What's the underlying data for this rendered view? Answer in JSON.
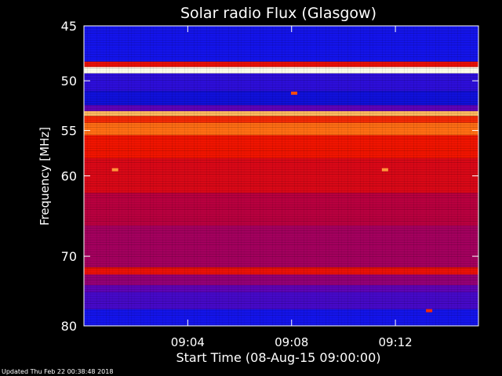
{
  "chart_data": {
    "type": "heatmap",
    "title": "Solar radio Flux (Glasgow)",
    "ylabel": "Frequency [MHz]",
    "xlabel": "Start Time (08-Aug-15 09:00:00)",
    "y_scale": "log",
    "ylim": [
      45,
      80
    ],
    "xlim": [
      "09:00:00",
      "09:15:12"
    ],
    "y_ticks": [
      45,
      50,
      55,
      60,
      70,
      80
    ],
    "x_ticks": [
      "09:04",
      "09:08",
      "09:12"
    ],
    "x_tick_minutes": [
      4,
      8,
      12
    ],
    "colormap": "blue-red-white",
    "bands": [
      {
        "from": 45,
        "to": 48.2,
        "level": 0.15
      },
      {
        "from": 48.2,
        "to": 48.7,
        "level": 0.6
      },
      {
        "from": 48.7,
        "to": 49.3,
        "level": 1.0
      },
      {
        "from": 49.3,
        "to": 51.0,
        "level": 0.2
      },
      {
        "from": 51.0,
        "to": 52.4,
        "level": 0.12
      },
      {
        "from": 52.4,
        "to": 53.0,
        "level": 0.3
      },
      {
        "from": 53.0,
        "to": 53.5,
        "level": 0.85
      },
      {
        "from": 53.5,
        "to": 54.2,
        "level": 0.65
      },
      {
        "from": 54.2,
        "to": 55.5,
        "level": 0.75
      },
      {
        "from": 55.5,
        "to": 58.0,
        "level": 0.62
      },
      {
        "from": 58.0,
        "to": 62.0,
        "level": 0.55
      },
      {
        "from": 62.0,
        "to": 66.0,
        "level": 0.47
      },
      {
        "from": 66.0,
        "to": 71.5,
        "level": 0.43
      },
      {
        "from": 71.5,
        "to": 72.5,
        "level": 0.6
      },
      {
        "from": 72.5,
        "to": 74.0,
        "level": 0.4
      },
      {
        "from": 74.0,
        "to": 75.0,
        "level": 0.3
      },
      {
        "from": 75.0,
        "to": 77.5,
        "level": 0.25
      },
      {
        "from": 77.5,
        "to": 80.0,
        "level": 0.15
      }
    ],
    "hot_spots": [
      {
        "minute": 1.2,
        "freq": 59.3,
        "level": 0.8
      },
      {
        "minute": 11.6,
        "freq": 59.3,
        "level": 0.8
      },
      {
        "minute": 8.1,
        "freq": 51.2,
        "level": 0.7
      },
      {
        "minute": 13.3,
        "freq": 77.7,
        "level": 0.65
      }
    ]
  },
  "footer": {
    "updated": "Updated Thu Feb 22 00:38:48 2018"
  }
}
